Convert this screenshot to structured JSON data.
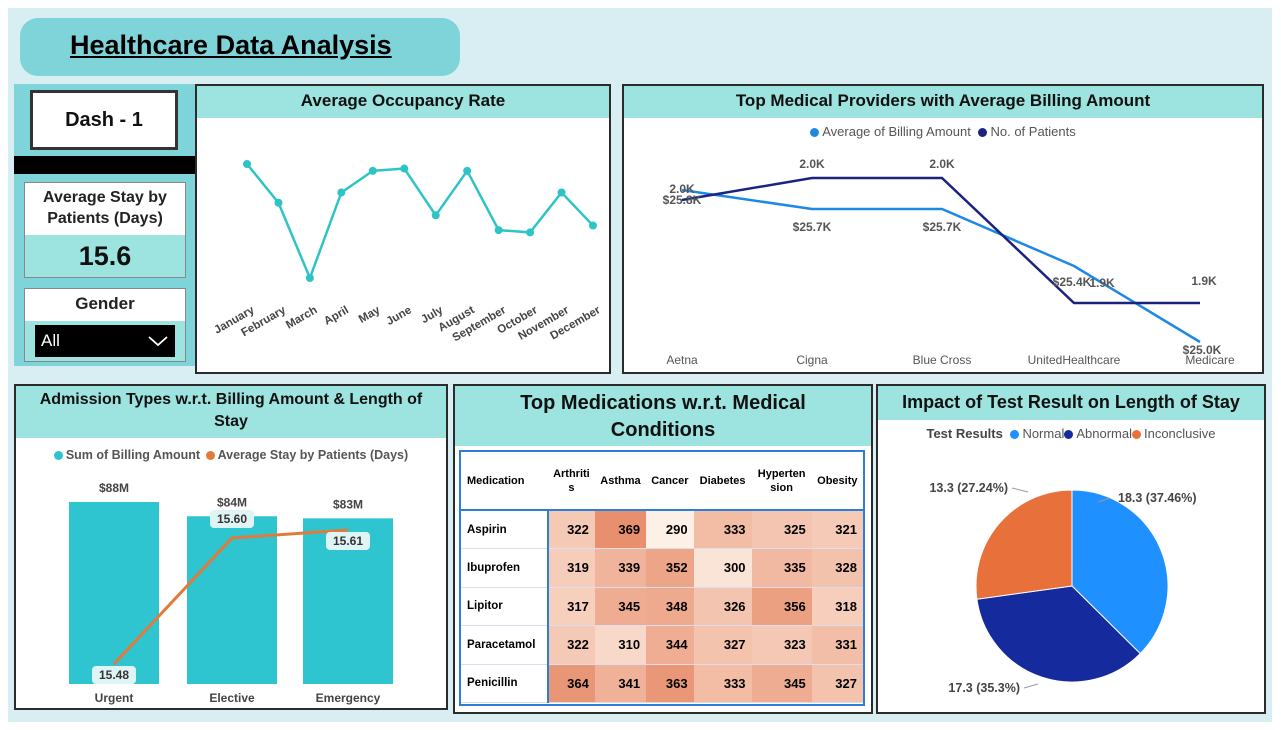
{
  "title": "Healthcare Data Analysis",
  "dash_label": "Dash - 1",
  "avg_stay": {
    "label": "Average Stay by Patients (Days)",
    "value": "15.6"
  },
  "gender": {
    "label": "Gender",
    "selected": "All"
  },
  "occupancy": {
    "title": "Average Occupancy Rate",
    "chart_data": {
      "type": "line",
      "title": "Average Occupancy Rate",
      "categories": [
        "January",
        "February",
        "March",
        "April",
        "May",
        "June",
        "July",
        "August",
        "September",
        "October",
        "November",
        "December"
      ],
      "values": [
        1.0,
        0.66,
        0.0,
        0.75,
        0.94,
        0.96,
        0.55,
        0.94,
        0.42,
        0.4,
        0.75,
        0.46
      ],
      "line_color": "#2ec4c6"
    }
  },
  "providers": {
    "title": "Top Medical Providers with Average Billing Amount",
    "legend": [
      {
        "name": "Average of Billing Amount",
        "color": "#1e88e5"
      },
      {
        "name": "No. of Patients",
        "color": "#1a237e"
      }
    ],
    "chart_data": {
      "type": "line",
      "categories": [
        "Aetna",
        "Cigna",
        "Blue Cross",
        "UnitedHealthcare",
        "Medicare"
      ],
      "series": [
        {
          "name": "Average of Billing Amount",
          "color": "#1e88e5",
          "values": [
            25.8,
            25.7,
            25.7,
            25.4,
            25.0
          ],
          "labels": [
            "$25.8K",
            "$25.7K",
            "$25.7K",
            "$25.4K",
            "$25.0K"
          ]
        },
        {
          "name": "No. of Patients",
          "color": "#1a237e",
          "values": [
            2.0,
            2.0,
            2.0,
            1.9,
            1.9
          ],
          "labels": [
            "2.0K",
            "2.0K",
            "2.0K",
            "1.9K",
            "1.9K"
          ]
        }
      ]
    }
  },
  "admission": {
    "title": "Admission Types w.r.t. Billing Amount & Length of Stay",
    "legend": [
      {
        "name": "Sum of Billing Amount",
        "color": "#2ec4d0"
      },
      {
        "name": "Average Stay by Patients (Days)",
        "color": "#e07b39"
      }
    ],
    "chart_data": {
      "type": "bar",
      "categories": [
        "Urgent",
        "Elective",
        "Emergency"
      ],
      "series": [
        {
          "name": "Sum of Billing Amount",
          "color": "#2ec4d0",
          "values": [
            88,
            84,
            83
          ],
          "labels": [
            "$88M",
            "$84M",
            "$83M"
          ]
        },
        {
          "name": "Average Stay by Patients (Days)",
          "color": "#e07b39",
          "values": [
            15.48,
            15.6,
            15.61
          ],
          "labels": [
            "15.48",
            "15.60",
            "15.61"
          ]
        }
      ]
    }
  },
  "medications": {
    "title": "Top Medications w.r.t. Medical Conditions",
    "header_first": "Medication",
    "columns": [
      "Arthritis",
      "Asthma",
      "Cancer",
      "Diabetes",
      "Hypertension",
      "Obesity"
    ],
    "column_labels": [
      [
        "Arthriti",
        "s"
      ],
      [
        "Asthma"
      ],
      [
        "Cancer"
      ],
      [
        "Diabetes"
      ],
      [
        "Hyperten",
        "sion"
      ],
      [
        "Obesity"
      ]
    ],
    "rows": [
      {
        "name": "Aspirin",
        "values": [
          "322",
          "369",
          "290",
          "333",
          "325",
          "321"
        ]
      },
      {
        "name": "Ibuprofen",
        "values": [
          "319",
          "339",
          "352",
          "300",
          "335",
          "328"
        ]
      },
      {
        "name": "Lipitor",
        "values": [
          "317",
          "345",
          "348",
          "326",
          "356",
          "318"
        ]
      },
      {
        "name": "Paracetamol",
        "values": [
          "322",
          "310",
          "344",
          "327",
          "323",
          "331"
        ]
      },
      {
        "name": "Penicillin",
        "values": [
          "364",
          "341",
          "363",
          "333",
          "345",
          "327"
        ]
      }
    ]
  },
  "test_results": {
    "title": "Impact of Test Result on Length of Stay",
    "legend_title": "Test Results",
    "chart_data": {
      "type": "pie",
      "slices": [
        {
          "name": "Normal",
          "value": 18.3,
          "label": "18.3 (37.46%)",
          "color": "#1e90ff"
        },
        {
          "name": "Abnormal",
          "value": 17.3,
          "label": "17.3 (35.3%)",
          "color": "#152a9c"
        },
        {
          "name": "Inconclusive",
          "value": 13.3,
          "label": "13.3 (27.24%)",
          "color": "#e8703a"
        }
      ]
    }
  }
}
